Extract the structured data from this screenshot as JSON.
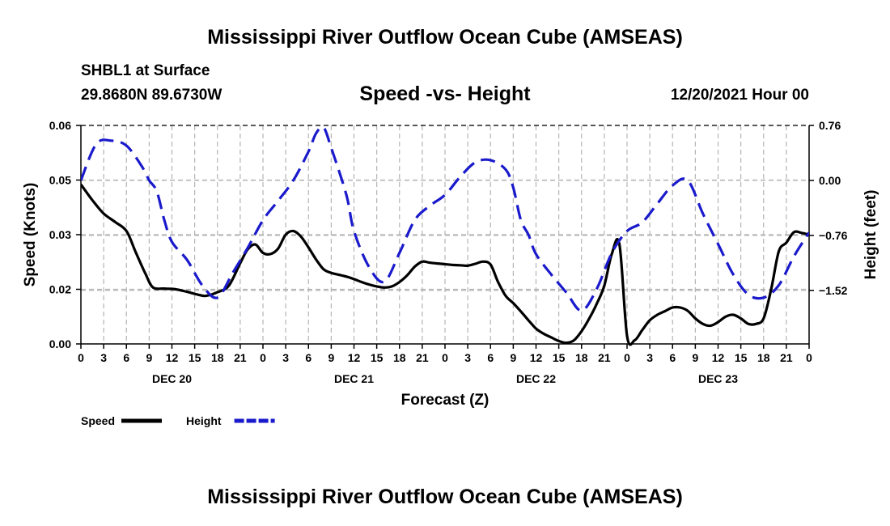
{
  "page": {
    "title_top": "Mississippi River Outflow Ocean Cube (AMSEAS)",
    "title_bottom": "Mississippi River Outflow Ocean Cube (AMSEAS)",
    "station": "SHBL1 at Surface",
    "coords": "29.8680N  89.6730W",
    "subtitle": "Speed -vs- Height",
    "datetime": "12/20/2021 Hour 00"
  },
  "chart_data": {
    "type": "line",
    "title": "Speed -vs- Height",
    "xlabel": "Forecast (Z)",
    "ylabel": "Speed (Knots)",
    "y2label": "Height (feet)",
    "x_unit": "hours since 12/20/2021 00Z",
    "xlim": [
      0,
      96
    ],
    "ylim": [
      0,
      0.06
    ],
    "y2lim": [
      -2.26,
      0.76
    ],
    "grid": true,
    "x_tick_values": [
      0,
      3,
      6,
      9,
      12,
      15,
      18,
      21,
      24,
      27,
      30,
      33,
      36,
      39,
      42,
      45,
      48,
      51,
      54,
      57,
      60,
      63,
      66,
      69,
      72,
      75,
      78,
      81,
      84,
      87,
      90,
      93,
      96
    ],
    "x_tick_labels": [
      "0",
      "3",
      "6",
      "9",
      "12",
      "15",
      "18",
      "21",
      "0",
      "3",
      "6",
      "9",
      "12",
      "15",
      "18",
      "21",
      "0",
      "3",
      "6",
      "9",
      "12",
      "15",
      "18",
      "21",
      "0",
      "3",
      "6",
      "9",
      "12",
      "15",
      "18",
      "21",
      "0"
    ],
    "day_labels": [
      {
        "label": "DEC 20",
        "x": 12
      },
      {
        "label": "DEC 21",
        "x": 36
      },
      {
        "label": "DEC 22",
        "x": 60
      },
      {
        "label": "DEC 23",
        "x": 84
      }
    ],
    "y_tick_values": [
      0,
      0.015,
      0.03,
      0.045,
      0.06
    ],
    "y_tick_labels": [
      "0.00",
      "0.02",
      "0.03",
      "0.05",
      "0.06"
    ],
    "y2_tick_values": [
      0.76,
      0.0,
      -0.76,
      -1.52
    ],
    "y2_tick_labels": [
      "0.76",
      "0.00",
      "−0.76",
      "−1.52"
    ],
    "legend": [
      {
        "name": "Speed",
        "color": "#000000",
        "dash": "solid"
      },
      {
        "name": "Height",
        "color": "#1a1acc",
        "dash": "dashed"
      }
    ],
    "series": [
      {
        "name": "Speed",
        "axis": "left",
        "color": "#000000",
        "dash": "solid",
        "x": [
          0,
          1.5,
          3,
          4.5,
          6,
          7.2,
          8.5,
          9.5,
          11,
          12.5,
          14,
          15.5,
          16.5,
          18,
          19.5,
          21,
          22,
          23,
          24,
          25,
          26,
          27,
          28,
          29,
          30,
          31,
          32,
          33,
          34,
          35,
          36,
          37,
          38,
          39,
          40,
          41,
          42,
          43,
          44,
          45,
          46,
          47,
          48,
          49,
          50,
          51,
          52,
          53,
          54,
          55,
          56,
          57,
          58,
          59,
          60,
          61,
          62,
          63,
          64,
          65,
          66,
          67,
          68,
          69,
          70,
          71,
          72,
          73,
          74,
          75,
          76,
          77,
          78,
          79,
          80,
          81,
          82,
          83,
          84,
          85,
          86,
          87,
          88,
          89,
          90,
          91,
          92,
          93,
          94,
          95,
          96
        ],
        "y": [
          0.0438,
          0.0395,
          0.0358,
          0.0335,
          0.031,
          0.0253,
          0.0193,
          0.0155,
          0.0152,
          0.015,
          0.0143,
          0.0135,
          0.0132,
          0.0142,
          0.016,
          0.0222,
          0.026,
          0.0273,
          0.025,
          0.0247,
          0.0262,
          0.03,
          0.031,
          0.0295,
          0.0265,
          0.0232,
          0.0205,
          0.0195,
          0.019,
          0.0185,
          0.0178,
          0.017,
          0.0163,
          0.0158,
          0.0155,
          0.0158,
          0.017,
          0.0188,
          0.0212,
          0.0226,
          0.0223,
          0.0221,
          0.0219,
          0.0217,
          0.0216,
          0.0215,
          0.022,
          0.0226,
          0.0218,
          0.017,
          0.0132,
          0.0112,
          0.0089,
          0.0065,
          0.0042,
          0.0028,
          0.0018,
          0.0008,
          0.0003,
          0.001,
          0.0035,
          0.0069,
          0.011,
          0.016,
          0.0248,
          0.0273,
          0.0022,
          0.001,
          0.0038,
          0.0065,
          0.008,
          0.009,
          0.01,
          0.01,
          0.0091,
          0.007,
          0.0055,
          0.005,
          0.006,
          0.0075,
          0.008,
          0.007,
          0.0055,
          0.0055,
          0.007,
          0.015,
          0.0254,
          0.0278,
          0.0307,
          0.0305,
          0.03
        ]
      },
      {
        "name": "Height",
        "axis": "right",
        "color": "#1a1acc",
        "dash": "dashed",
        "x": [
          0,
          2,
          4,
          6,
          8,
          9,
          10,
          11,
          12,
          14,
          16,
          18,
          20,
          22,
          24,
          26,
          28,
          30,
          31,
          32,
          33,
          35,
          36,
          38,
          40,
          42,
          44,
          46,
          48,
          50,
          52,
          54,
          56,
          57,
          58,
          59,
          60,
          62,
          64,
          66,
          68,
          70,
          72,
          74,
          76,
          78,
          80,
          82,
          84,
          86,
          88,
          90,
          92,
          94,
          96
        ],
        "y": [
          0.0,
          0.5,
          0.55,
          0.48,
          0.2,
          0.0,
          -0.15,
          -0.55,
          -0.85,
          -1.1,
          -1.45,
          -1.62,
          -1.28,
          -0.93,
          -0.55,
          -0.28,
          0.0,
          0.4,
          0.65,
          0.73,
          0.45,
          -0.2,
          -0.7,
          -1.2,
          -1.4,
          -1.0,
          -0.55,
          -0.35,
          -0.2,
          0.05,
          0.25,
          0.28,
          0.15,
          -0.1,
          -0.55,
          -0.75,
          -1.02,
          -1.3,
          -1.55,
          -1.8,
          -1.5,
          -1.0,
          -0.7,
          -0.58,
          -0.32,
          -0.07,
          0.0,
          -0.46,
          -0.88,
          -1.3,
          -1.58,
          -1.62,
          -1.45,
          -1.05,
          -0.72
        ]
      }
    ]
  }
}
